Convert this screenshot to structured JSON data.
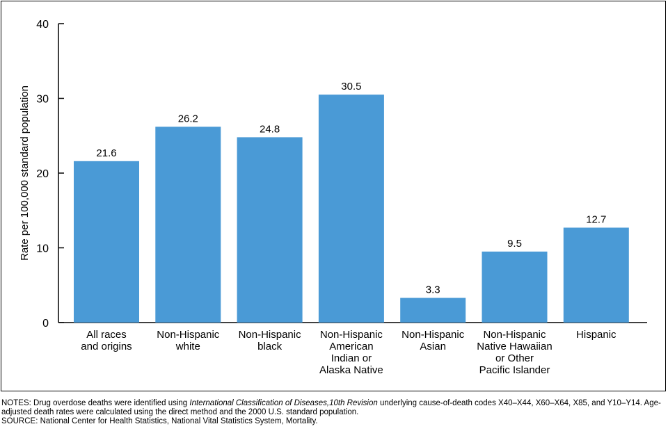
{
  "chart_data": {
    "type": "bar",
    "ylabel": "Rate per 100,000 standard population",
    "ylim": [
      0,
      40
    ],
    "yticks": [
      "0",
      "10",
      "20",
      "30",
      "40"
    ],
    "categories": [
      [
        "All races",
        "and origins"
      ],
      [
        "Non-Hispanic",
        "white"
      ],
      [
        "Non-Hispanic",
        "black"
      ],
      [
        "Non-Hispanic",
        "American",
        "Indian or",
        "Alaska Native"
      ],
      [
        "Non-Hispanic",
        "Asian"
      ],
      [
        "Non-Hispanic",
        "Native Hawaiian",
        "or Other",
        "Pacific Islander"
      ],
      [
        "Hispanic"
      ]
    ],
    "values": [
      21.6,
      26.2,
      24.8,
      30.5,
      3.3,
      9.5,
      12.7
    ],
    "value_labels": [
      "21.6",
      "26.2",
      "24.8",
      "30.5",
      "3.3",
      "9.5",
      "12.7"
    ],
    "bar_color": "#4a9ad6",
    "grid": false
  },
  "notes": {
    "prefix": "NOTES: Drug overdose deaths were identified using ",
    "italic": "International Classification of Diseases,10th Revision",
    "suffix": " underlying cause-of-death codes X40–X44, X60–X64, X85, and Y10–Y14. Age-adjusted death rates were calculated using the direct method and the 2000 U.S. standard population.",
    "source": "SOURCE: National Center for Health Statistics, National Vital Statistics System, Mortality."
  }
}
